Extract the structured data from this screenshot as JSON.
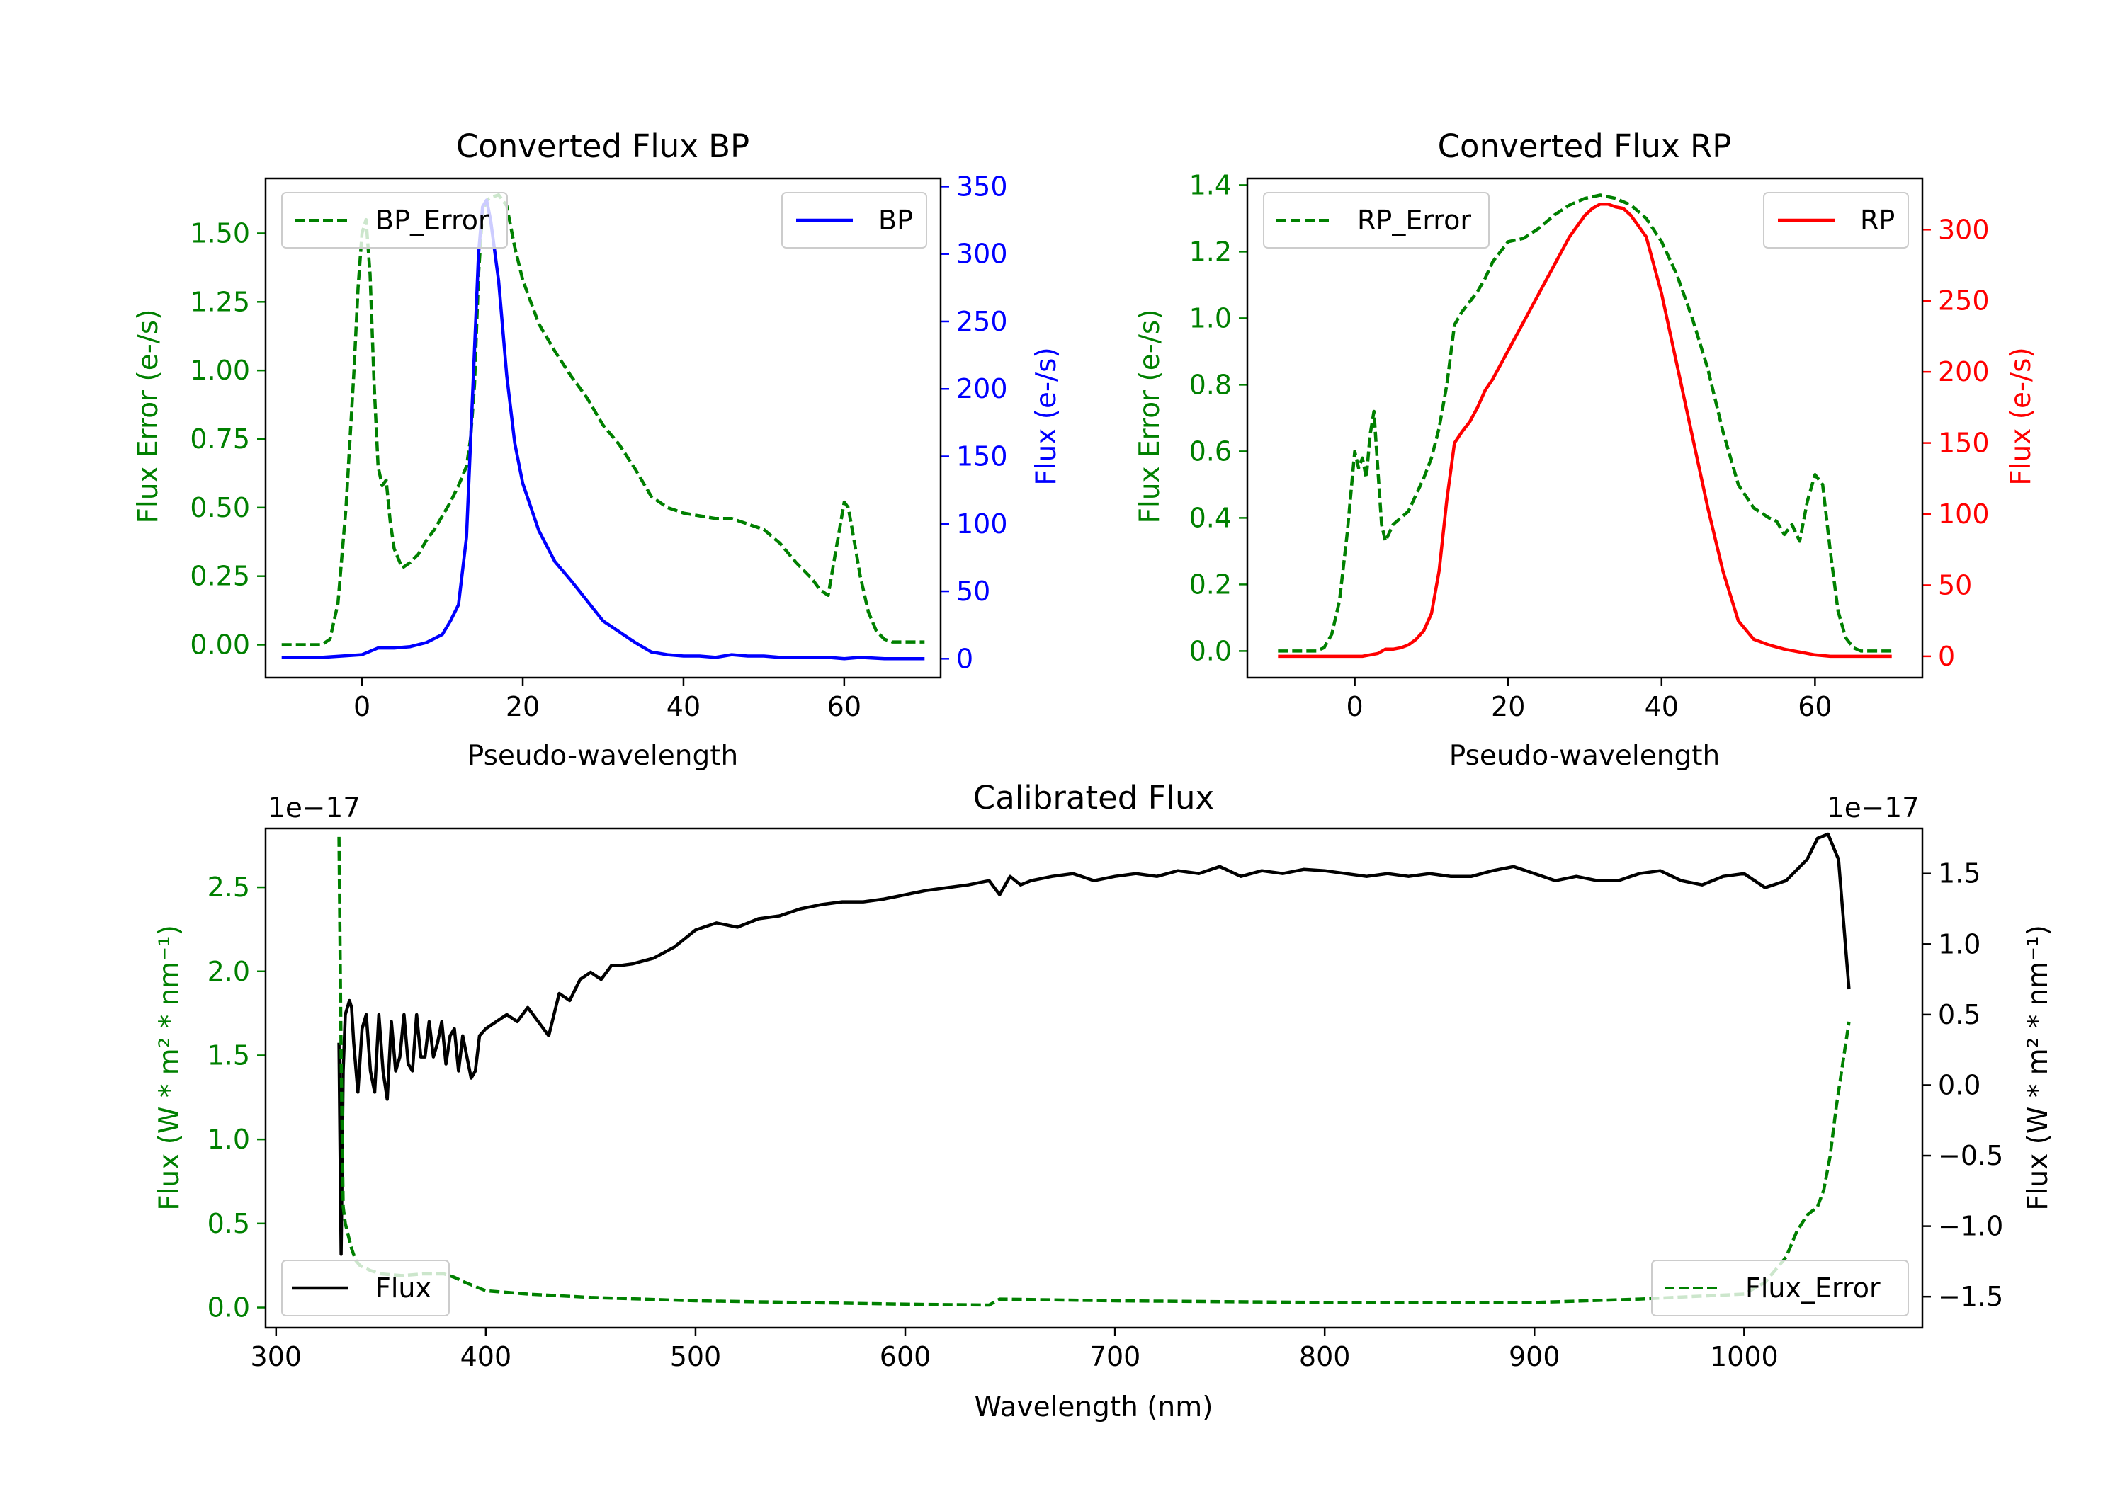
{
  "chart_data": [
    {
      "type": "line",
      "id": "bp",
      "title": "Converted Flux BP",
      "xlabel": "Pseudo-wavelength",
      "ylabel_left": "Flux Error (e-/s)",
      "ylabel_right": "Flux (e-/s)",
      "xlim": [
        -12,
        72
      ],
      "ylim_left": [
        -0.12,
        1.7
      ],
      "ylim_right": [
        -14,
        356
      ],
      "xticks": [
        0,
        20,
        40,
        60
      ],
      "yticks_left": [
        "0.00",
        "0.25",
        "0.50",
        "0.75",
        "1.00",
        "1.25",
        "1.50"
      ],
      "yticks_left_values": [
        0,
        0.25,
        0.5,
        0.75,
        1.0,
        1.25,
        1.5
      ],
      "yticks_right": [
        "0",
        "50",
        "100",
        "150",
        "200",
        "250",
        "300",
        "350"
      ],
      "yticks_right_values": [
        0,
        50,
        100,
        150,
        200,
        250,
        300,
        350
      ],
      "left_axis_color": "#008000",
      "right_axis_color": "#0000ff",
      "legend_left_label": "BP_Error",
      "legend_right_label": "BP",
      "series": [
        {
          "name": "BP_Error",
          "axis": "left",
          "style": "dashed",
          "color": "#008000",
          "x": [
            -10,
            -5,
            -4,
            -3,
            -2,
            -1,
            -0.5,
            0,
            0.5,
            1,
            1.5,
            2,
            2.5,
            3,
            3.5,
            4,
            5,
            6,
            7,
            8,
            9,
            10,
            11,
            12,
            13,
            13.5,
            14,
            14.5,
            15,
            15.5,
            16,
            17,
            18,
            19,
            20,
            22,
            24,
            26,
            28,
            30,
            32,
            34,
            36,
            38,
            40,
            42,
            44,
            46,
            48,
            50,
            52,
            54,
            56,
            57,
            58,
            59,
            60,
            60.5,
            61,
            62,
            63,
            64,
            65,
            66,
            70
          ],
          "y": [
            0,
            0,
            0.02,
            0.15,
            0.5,
            1.0,
            1.3,
            1.5,
            1.55,
            1.35,
            0.95,
            0.65,
            0.58,
            0.6,
            0.45,
            0.35,
            0.28,
            0.3,
            0.33,
            0.38,
            0.42,
            0.47,
            0.52,
            0.58,
            0.65,
            0.75,
            0.95,
            1.35,
            1.58,
            1.62,
            1.63,
            1.64,
            1.6,
            1.45,
            1.33,
            1.17,
            1.07,
            0.98,
            0.9,
            0.8,
            0.73,
            0.64,
            0.54,
            0.5,
            0.48,
            0.47,
            0.46,
            0.46,
            0.44,
            0.42,
            0.37,
            0.3,
            0.24,
            0.2,
            0.18,
            0.35,
            0.52,
            0.5,
            0.42,
            0.25,
            0.12,
            0.05,
            0.02,
            0.01,
            0.01
          ]
        },
        {
          "name": "BP",
          "axis": "right",
          "style": "solid",
          "color": "#0000ff",
          "x": [
            -10,
            -5,
            0,
            2,
            4,
            6,
            8,
            10,
            11,
            12,
            13,
            13.5,
            14,
            14.5,
            15,
            15.5,
            16,
            17,
            18,
            19,
            20,
            22,
            24,
            26,
            28,
            30,
            32,
            34,
            36,
            38,
            40,
            42,
            44,
            46,
            48,
            50,
            52,
            54,
            56,
            58,
            60,
            62,
            65,
            70
          ],
          "y": [
            1,
            1,
            3,
            8,
            8,
            9,
            12,
            18,
            28,
            40,
            90,
            160,
            230,
            300,
            335,
            340,
            325,
            280,
            210,
            160,
            130,
            95,
            72,
            58,
            43,
            28,
            20,
            12,
            5,
            3,
            2,
            2,
            1,
            3,
            2,
            2,
            1,
            1,
            1,
            1,
            0,
            1,
            0,
            0
          ]
        }
      ]
    },
    {
      "type": "line",
      "id": "rp",
      "title": "Converted Flux RP",
      "xlabel": "Pseudo-wavelength",
      "ylabel_left": "Flux Error (e-/s)",
      "ylabel_right": "Flux (e-/s)",
      "xlim": [
        -14,
        74
      ],
      "ylim_left": [
        -0.08,
        1.42
      ],
      "ylim_right": [
        -15,
        336
      ],
      "xticks": [
        0,
        20,
        40,
        60
      ],
      "yticks_left": [
        "0.0",
        "0.2",
        "0.4",
        "0.6",
        "0.8",
        "1.0",
        "1.2",
        "1.4"
      ],
      "yticks_left_values": [
        0,
        0.2,
        0.4,
        0.6,
        0.8,
        1.0,
        1.2,
        1.4
      ],
      "yticks_right": [
        "0",
        "50",
        "100",
        "150",
        "200",
        "250",
        "300"
      ],
      "yticks_right_values": [
        0,
        50,
        100,
        150,
        200,
        250,
        300
      ],
      "left_axis_color": "#008000",
      "right_axis_color": "#ff0000",
      "legend_left_label": "RP_Error",
      "legend_right_label": "RP",
      "series": [
        {
          "name": "RP_Error",
          "axis": "left",
          "style": "dashed",
          "color": "#008000",
          "x": [
            -10,
            -5,
            -4,
            -3,
            -2,
            -1,
            0,
            0.5,
            1,
            1.5,
            2,
            2.5,
            3,
            3.5,
            4,
            5,
            6,
            7,
            8,
            9,
            10,
            11,
            12,
            13,
            14,
            15,
            16,
            17,
            18,
            19,
            20,
            22,
            24,
            26,
            28,
            30,
            32,
            34,
            36,
            38,
            40,
            42,
            44,
            46,
            48,
            50,
            52,
            54,
            55,
            56,
            57,
            58,
            59,
            60,
            61,
            62,
            63,
            64,
            65,
            66,
            70
          ],
          "y": [
            0,
            0,
            0.01,
            0.05,
            0.15,
            0.35,
            0.6,
            0.55,
            0.58,
            0.52,
            0.65,
            0.72,
            0.55,
            0.38,
            0.33,
            0.38,
            0.4,
            0.42,
            0.47,
            0.52,
            0.58,
            0.67,
            0.8,
            0.98,
            1.02,
            1.05,
            1.08,
            1.12,
            1.17,
            1.2,
            1.23,
            1.24,
            1.27,
            1.31,
            1.34,
            1.36,
            1.37,
            1.36,
            1.34,
            1.3,
            1.23,
            1.13,
            1.0,
            0.85,
            0.66,
            0.5,
            0.43,
            0.4,
            0.39,
            0.35,
            0.38,
            0.33,
            0.45,
            0.53,
            0.5,
            0.3,
            0.12,
            0.04,
            0.01,
            0,
            0
          ]
        },
        {
          "name": "RP",
          "axis": "right",
          "style": "solid",
          "color": "#ff0000",
          "x": [
            -10,
            -5,
            0,
            1,
            2,
            3,
            4,
            5,
            6,
            7,
            8,
            9,
            10,
            11,
            12,
            13,
            14,
            15,
            16,
            17,
            18,
            19,
            20,
            22,
            24,
            26,
            28,
            30,
            31,
            32,
            33,
            34,
            35,
            36,
            38,
            40,
            42,
            44,
            46,
            48,
            50,
            52,
            54,
            56,
            58,
            60,
            62,
            65,
            70
          ],
          "y": [
            0,
            0,
            0,
            0,
            1,
            2,
            5,
            5,
            6,
            8,
            12,
            18,
            30,
            60,
            110,
            150,
            158,
            165,
            175,
            187,
            195,
            205,
            215,
            235,
            255,
            275,
            295,
            310,
            315,
            318,
            318,
            316,
            315,
            310,
            295,
            255,
            205,
            155,
            105,
            60,
            25,
            12,
            8,
            5,
            3,
            1,
            0,
            0,
            0
          ]
        }
      ]
    },
    {
      "type": "line",
      "id": "calibrated",
      "title": "Calibrated Flux",
      "xlabel": "Wavelength (nm)",
      "ylabel_left": "Flux (W * m² * nm⁻¹)",
      "ylabel_right": "Flux (W * m² * nm⁻¹)",
      "offset_left": "1e−17",
      "offset_right": "1e−17",
      "xlim": [
        295,
        1085
      ],
      "ylim_left": [
        -0.12,
        2.85
      ],
      "ylim_right": [
        -1.72,
        1.82
      ],
      "xticks": [
        300,
        400,
        500,
        600,
        700,
        800,
        900,
        1000
      ],
      "yticks_left": [
        "0.0",
        "0.5",
        "1.0",
        "1.5",
        "2.0",
        "2.5"
      ],
      "yticks_left_values": [
        0,
        0.5,
        1.0,
        1.5,
        2.0,
        2.5
      ],
      "yticks_right": [
        "−1.5",
        "−1.0",
        "−0.5",
        "0.0",
        "0.5",
        "1.0",
        "1.5"
      ],
      "yticks_right_values": [
        -1.5,
        -1.0,
        -0.5,
        0.0,
        0.5,
        1.0,
        1.5
      ],
      "left_axis_color": "#008000",
      "right_axis_color": "#000000",
      "legend_left_label": "Flux",
      "legend_right_label": "Flux_Error",
      "series": [
        {
          "name": "Flux",
          "axis": "right",
          "style": "solid",
          "color": "#000000",
          "x": [
            330,
            331,
            332,
            333,
            335,
            336,
            337,
            339,
            341,
            343,
            345,
            347,
            349,
            351,
            353,
            355,
            357,
            359,
            361,
            363,
            365,
            367,
            369,
            371,
            373,
            375,
            377,
            379,
            381,
            383,
            385,
            387,
            389,
            391,
            393,
            395,
            397,
            400,
            405,
            410,
            415,
            420,
            425,
            430,
            435,
            440,
            445,
            450,
            455,
            460,
            465,
            470,
            480,
            490,
            500,
            510,
            520,
            530,
            540,
            550,
            560,
            570,
            580,
            590,
            600,
            610,
            620,
            630,
            640,
            645,
            650,
            655,
            660,
            670,
            680,
            690,
            700,
            710,
            720,
            730,
            740,
            750,
            760,
            770,
            780,
            790,
            800,
            810,
            820,
            830,
            840,
            850,
            860,
            870,
            880,
            890,
            900,
            910,
            920,
            930,
            940,
            950,
            960,
            970,
            980,
            990,
            1000,
            1010,
            1020,
            1030,
            1035,
            1040,
            1045,
            1050
          ],
          "y": [
            0.3,
            -1.2,
            0.1,
            0.5,
            0.6,
            0.55,
            0.3,
            -0.05,
            0.4,
            0.5,
            0.1,
            -0.05,
            0.5,
            0.1,
            -0.1,
            0.45,
            0.1,
            0.2,
            0.5,
            0.15,
            0.1,
            0.5,
            0.2,
            0.2,
            0.45,
            0.2,
            0.3,
            0.45,
            0.15,
            0.35,
            0.4,
            0.1,
            0.35,
            0.2,
            0.05,
            0.1,
            0.35,
            0.4,
            0.45,
            0.5,
            0.45,
            0.55,
            0.45,
            0.35,
            0.65,
            0.6,
            0.75,
            0.8,
            0.75,
            0.85,
            0.85,
            0.86,
            0.9,
            0.98,
            1.1,
            1.15,
            1.12,
            1.18,
            1.2,
            1.25,
            1.28,
            1.3,
            1.3,
            1.32,
            1.35,
            1.38,
            1.4,
            1.42,
            1.45,
            1.35,
            1.48,
            1.42,
            1.45,
            1.48,
            1.5,
            1.45,
            1.48,
            1.5,
            1.48,
            1.52,
            1.5,
            1.55,
            1.48,
            1.52,
            1.5,
            1.53,
            1.52,
            1.5,
            1.48,
            1.5,
            1.48,
            1.5,
            1.48,
            1.48,
            1.52,
            1.55,
            1.5,
            1.45,
            1.48,
            1.45,
            1.45,
            1.5,
            1.52,
            1.45,
            1.42,
            1.48,
            1.5,
            1.4,
            1.45,
            1.6,
            1.75,
            1.78,
            1.6,
            0.68
          ]
        },
        {
          "name": "Flux_Error",
          "axis": "left",
          "style": "dashed",
          "color": "#008000",
          "x": [
            330,
            331,
            332,
            333,
            334,
            335,
            336,
            338,
            340,
            345,
            350,
            360,
            370,
            380,
            385,
            390,
            400,
            420,
            450,
            500,
            550,
            600,
            640,
            645,
            700,
            800,
            900,
            950,
            1000,
            1010,
            1020,
            1025,
            1030,
            1035,
            1038,
            1041,
            1044,
            1047,
            1050
          ],
          "y": [
            2.8,
            1.5,
            0.6,
            0.5,
            0.45,
            0.4,
            0.35,
            0.28,
            0.25,
            0.22,
            0.2,
            0.19,
            0.2,
            0.2,
            0.18,
            0.15,
            0.1,
            0.08,
            0.06,
            0.04,
            0.03,
            0.02,
            0.015,
            0.05,
            0.04,
            0.03,
            0.03,
            0.05,
            0.08,
            0.15,
            0.3,
            0.45,
            0.55,
            0.6,
            0.7,
            0.9,
            1.2,
            1.45,
            1.7
          ]
        }
      ]
    }
  ]
}
